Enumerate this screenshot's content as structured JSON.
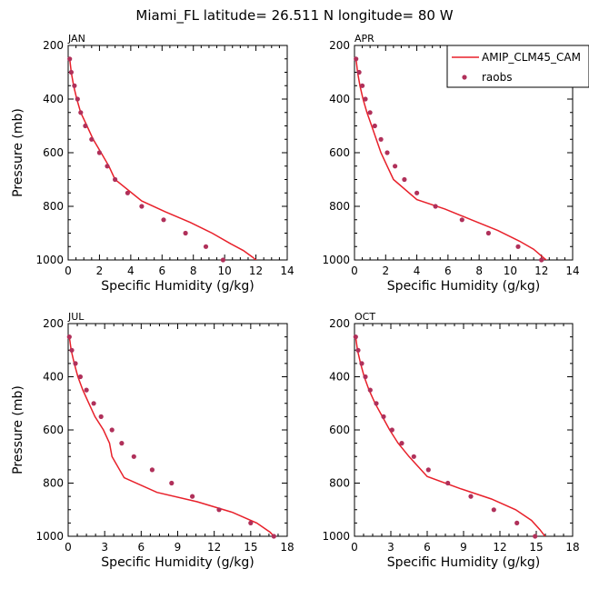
{
  "figure": {
    "title": "Miami_FL  latitude= 26.511 N longitude= 80 W"
  },
  "legend": {
    "model_label": "AMIP_CLM45_CAM",
    "obs_label": "raobs",
    "model_color": "#e8202a",
    "obs_color": "#b0305a"
  },
  "chart_data": [
    {
      "type": "line",
      "panel": "JAN",
      "title": "JAN",
      "xlabel": "Specific Humidity (g/kg)",
      "ylabel": "Pressure (mb)",
      "xlim": [
        0,
        14
      ],
      "ylim": [
        200,
        1000
      ],
      "xticks": [
        0,
        2,
        4,
        6,
        8,
        10,
        12,
        14
      ],
      "yticks": [
        200,
        400,
        600,
        800,
        1000
      ],
      "y_inverted": true,
      "series": [
        {
          "name": "AMIP_CLM45_CAM",
          "kind": "line",
          "x": [
            0.1,
            0.2,
            0.35,
            0.55,
            0.8,
            1.2,
            1.6,
            2.1,
            2.6,
            3.0,
            4.7,
            6.2,
            7.8,
            9.2,
            10.4,
            11.2,
            11.8,
            12.2
          ],
          "y": [
            250,
            300,
            350,
            400,
            450,
            500,
            550,
            600,
            650,
            700,
            780,
            820,
            860,
            900,
            940,
            965,
            990,
            1010
          ]
        },
        {
          "name": "raobs",
          "kind": "scatter",
          "x": [
            0.1,
            0.2,
            0.4,
            0.6,
            0.8,
            1.1,
            1.5,
            2.0,
            2.5,
            3.0,
            3.8,
            4.7,
            6.1,
            7.5,
            8.8,
            9.9
          ],
          "y": [
            250,
            300,
            350,
            400,
            450,
            500,
            550,
            600,
            650,
            700,
            750,
            800,
            850,
            900,
            950,
            1000
          ]
        }
      ]
    },
    {
      "type": "line",
      "panel": "APR",
      "title": "APR",
      "xlabel": "Specific Humidity (g/kg)",
      "ylabel": "",
      "xlim": [
        0,
        14
      ],
      "ylim": [
        200,
        1000
      ],
      "xticks": [
        0,
        2,
        4,
        6,
        8,
        10,
        12,
        14
      ],
      "yticks": [
        200,
        400,
        600,
        800,
        1000
      ],
      "y_inverted": true,
      "series": [
        {
          "name": "AMIP_CLM45_CAM",
          "kind": "line",
          "x": [
            0.1,
            0.2,
            0.35,
            0.55,
            0.8,
            1.1,
            1.4,
            1.7,
            2.1,
            2.5,
            4.0,
            5.8,
            7.5,
            9.2,
            10.6,
            11.5,
            12.1,
            12.5
          ],
          "y": [
            250,
            300,
            350,
            400,
            450,
            500,
            550,
            600,
            650,
            700,
            775,
            810,
            850,
            890,
            930,
            960,
            990,
            1010
          ]
        },
        {
          "name": "raobs",
          "kind": "scatter",
          "x": [
            0.1,
            0.3,
            0.5,
            0.7,
            1.0,
            1.3,
            1.7,
            2.1,
            2.6,
            3.2,
            4.0,
            5.2,
            6.9,
            8.6,
            10.5,
            12.0
          ],
          "y": [
            250,
            300,
            350,
            400,
            450,
            500,
            550,
            600,
            650,
            700,
            750,
            800,
            850,
            900,
            950,
            1000
          ]
        }
      ]
    },
    {
      "type": "line",
      "panel": "JUL",
      "title": "JUL",
      "xlabel": "Specific Humidity (g/kg)",
      "ylabel": "Pressure (mb)",
      "xlim": [
        0,
        18
      ],
      "ylim": [
        200,
        1000
      ],
      "xticks": [
        0,
        3,
        6,
        9,
        12,
        15,
        18
      ],
      "yticks": [
        200,
        400,
        600,
        800,
        1000
      ],
      "y_inverted": true,
      "series": [
        {
          "name": "AMIP_CLM45_CAM",
          "kind": "line",
          "x": [
            0.1,
            0.25,
            0.5,
            0.8,
            1.2,
            1.7,
            2.2,
            2.9,
            3.4,
            3.6,
            4.6,
            7.3,
            10.6,
            13.5,
            15.5,
            16.6,
            17.0
          ],
          "y": [
            250,
            300,
            350,
            400,
            450,
            500,
            550,
            600,
            650,
            700,
            780,
            835,
            870,
            910,
            950,
            985,
            1005
          ]
        },
        {
          "name": "raobs",
          "kind": "scatter",
          "x": [
            0.1,
            0.3,
            0.6,
            1.0,
            1.5,
            2.1,
            2.7,
            3.6,
            4.4,
            5.4,
            6.9,
            8.5,
            10.2,
            12.4,
            15.0,
            16.9
          ],
          "y": [
            250,
            300,
            350,
            400,
            450,
            500,
            550,
            600,
            650,
            700,
            750,
            800,
            850,
            900,
            950,
            1000
          ]
        }
      ]
    },
    {
      "type": "line",
      "panel": "OCT",
      "title": "OCT",
      "xlabel": "Specific Humidity (g/kg)",
      "ylabel": "",
      "xlim": [
        0,
        18
      ],
      "ylim": [
        200,
        1000
      ],
      "xticks": [
        0,
        3,
        6,
        9,
        12,
        15,
        18
      ],
      "yticks": [
        200,
        400,
        600,
        800,
        1000
      ],
      "y_inverted": true,
      "series": [
        {
          "name": "AMIP_CLM45_CAM",
          "kind": "line",
          "x": [
            0.1,
            0.25,
            0.5,
            0.8,
            1.2,
            1.7,
            2.3,
            2.9,
            3.6,
            4.5,
            6.0,
            8.7,
            11.3,
            13.3,
            14.6,
            15.3,
            15.8
          ],
          "y": [
            250,
            300,
            350,
            400,
            450,
            500,
            550,
            600,
            650,
            700,
            775,
            820,
            860,
            900,
            940,
            975,
            1005
          ]
        },
        {
          "name": "raobs",
          "kind": "scatter",
          "x": [
            0.1,
            0.3,
            0.6,
            0.9,
            1.3,
            1.8,
            2.4,
            3.1,
            3.9,
            4.9,
            6.1,
            7.7,
            9.6,
            11.5,
            13.4,
            14.9
          ],
          "y": [
            250,
            300,
            350,
            400,
            450,
            500,
            550,
            600,
            650,
            700,
            750,
            800,
            850,
            900,
            950,
            1000
          ]
        }
      ]
    }
  ]
}
